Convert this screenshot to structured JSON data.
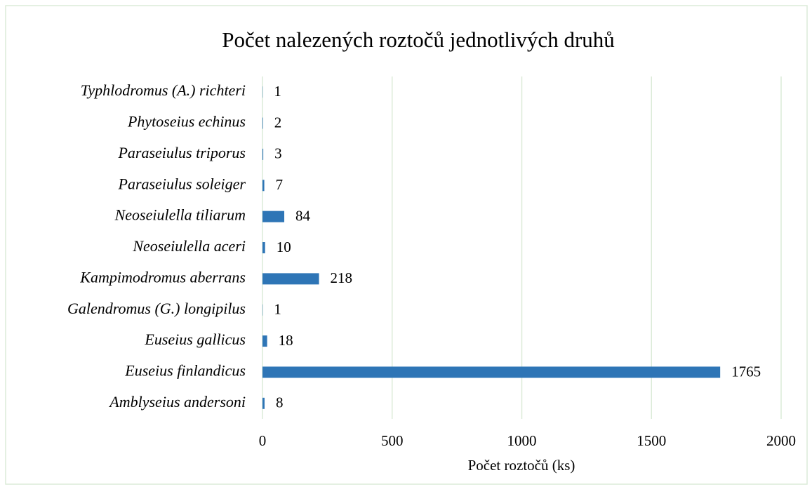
{
  "chart_data": {
    "type": "bar",
    "orientation": "horizontal",
    "title": "Počet nalezených roztočů jednotlivých druhů",
    "xlabel": "Počet roztočů (ks)",
    "categories": [
      "Typhlodromus (A.) richteri",
      "Phytoseius echinus",
      "Paraseiulus triporus",
      "Paraseiulus soleiger",
      "Neoseiulella tiliarum",
      "Neoseiulella aceri",
      "Kampimodromus aberrans",
      "Galendromus (G.) longipilus",
      "Euseius gallicus",
      "Euseius finlandicus",
      "Amblyseius andersoni"
    ],
    "values": [
      1,
      2,
      3,
      7,
      84,
      10,
      218,
      1,
      18,
      1765,
      8
    ],
    "color": "#2e75b6",
    "xlim": [
      0,
      2000
    ],
    "xticks": [
      0,
      500,
      1000,
      1500,
      2000
    ],
    "grid": true
  }
}
